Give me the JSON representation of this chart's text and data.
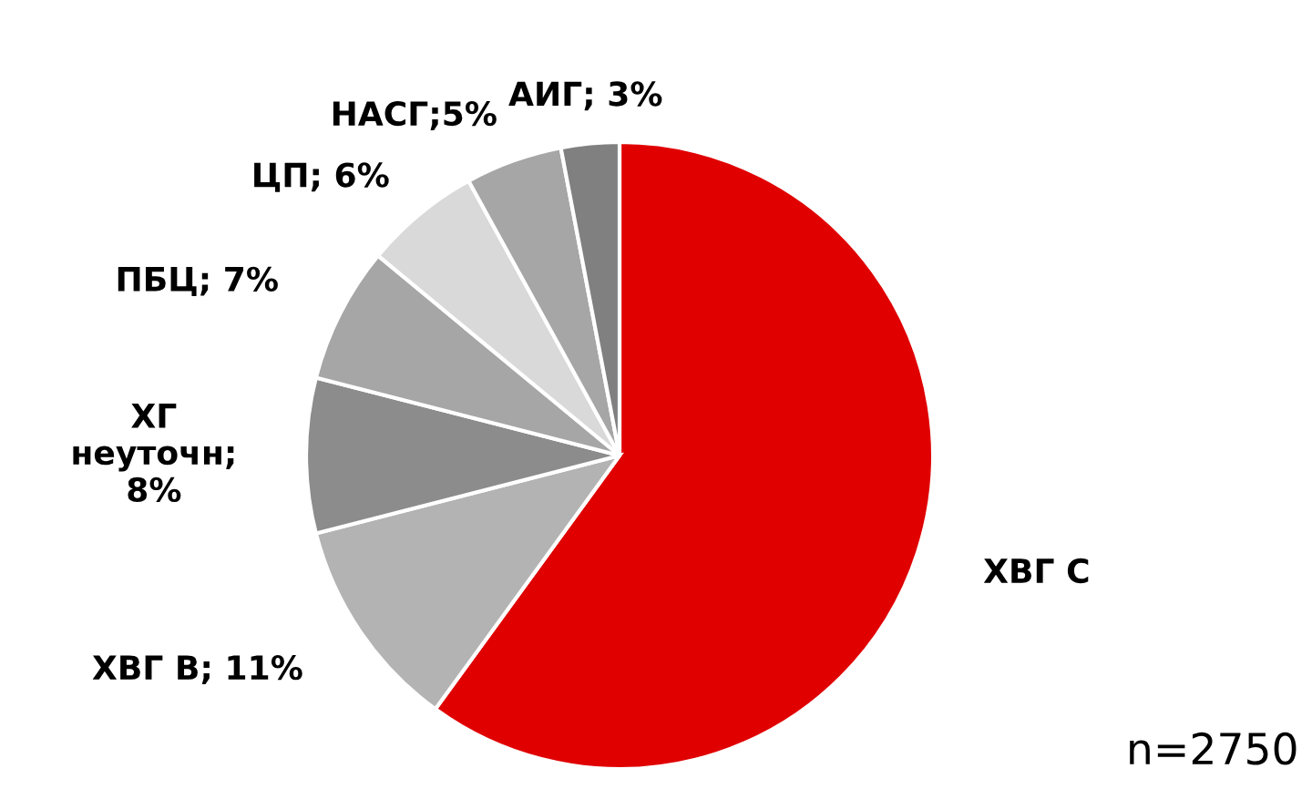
{
  "chart_data": {
    "type": "pie",
    "categories": [
      "ХВГ С",
      "ХВГ В; 11%",
      "ХГ\nнеуточн;\n8%",
      "ПБЦ; 7%",
      "ЦП; 6%",
      "НАСГ;5%",
      "АИГ; 3%"
    ],
    "values": [
      60,
      11,
      8,
      7,
      6,
      5,
      3
    ],
    "colors": [
      "#e00000",
      "#b3b3b3",
      "#8c8c8c",
      "#a6a6a6",
      "#d9d9d9",
      "#a6a6a6",
      "#808080"
    ],
    "annotations": [
      "n=2750"
    ]
  }
}
